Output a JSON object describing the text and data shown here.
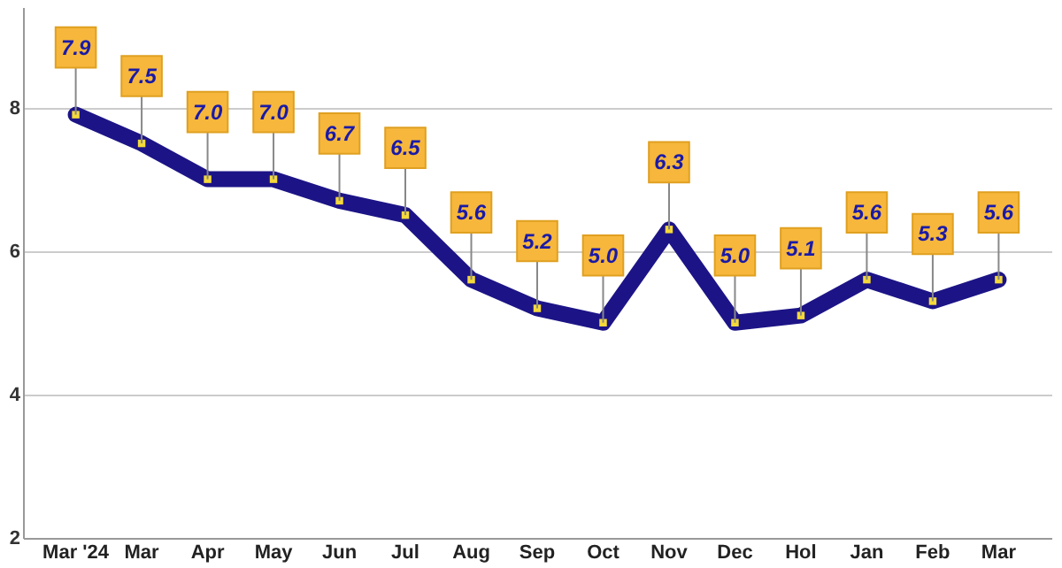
{
  "chart_data": {
    "type": "line",
    "categories": [
      "Mar '24",
      "Mar",
      "Apr",
      "May",
      "Jun",
      "Jul",
      "Aug",
      "Sep",
      "Oct",
      "Nov",
      "Dec",
      "Hol",
      "Jan",
      "Feb",
      "Mar"
    ],
    "series": [
      {
        "color": "#1c1486",
        "values": [
          7.9,
          7.5,
          7.0,
          7.0,
          6.7,
          6.5,
          5.6,
          5.2,
          5.0,
          6.3,
          5.0,
          5.1,
          5.6,
          5.3,
          5.6
        ],
        "value_labels": [
          "7.9",
          "7.5",
          "7.0",
          "7.0",
          "6.7",
          "6.5",
          "5.6",
          "5.2",
          "5.0",
          "6.3",
          "5.0",
          "5.1",
          "5.6",
          "5.3",
          "5.6"
        ]
      }
    ],
    "ylim": [
      2,
      9.4
    ],
    "yticks": [
      2,
      4,
      6,
      8
    ],
    "grid": "y",
    "marker": "square"
  }
}
